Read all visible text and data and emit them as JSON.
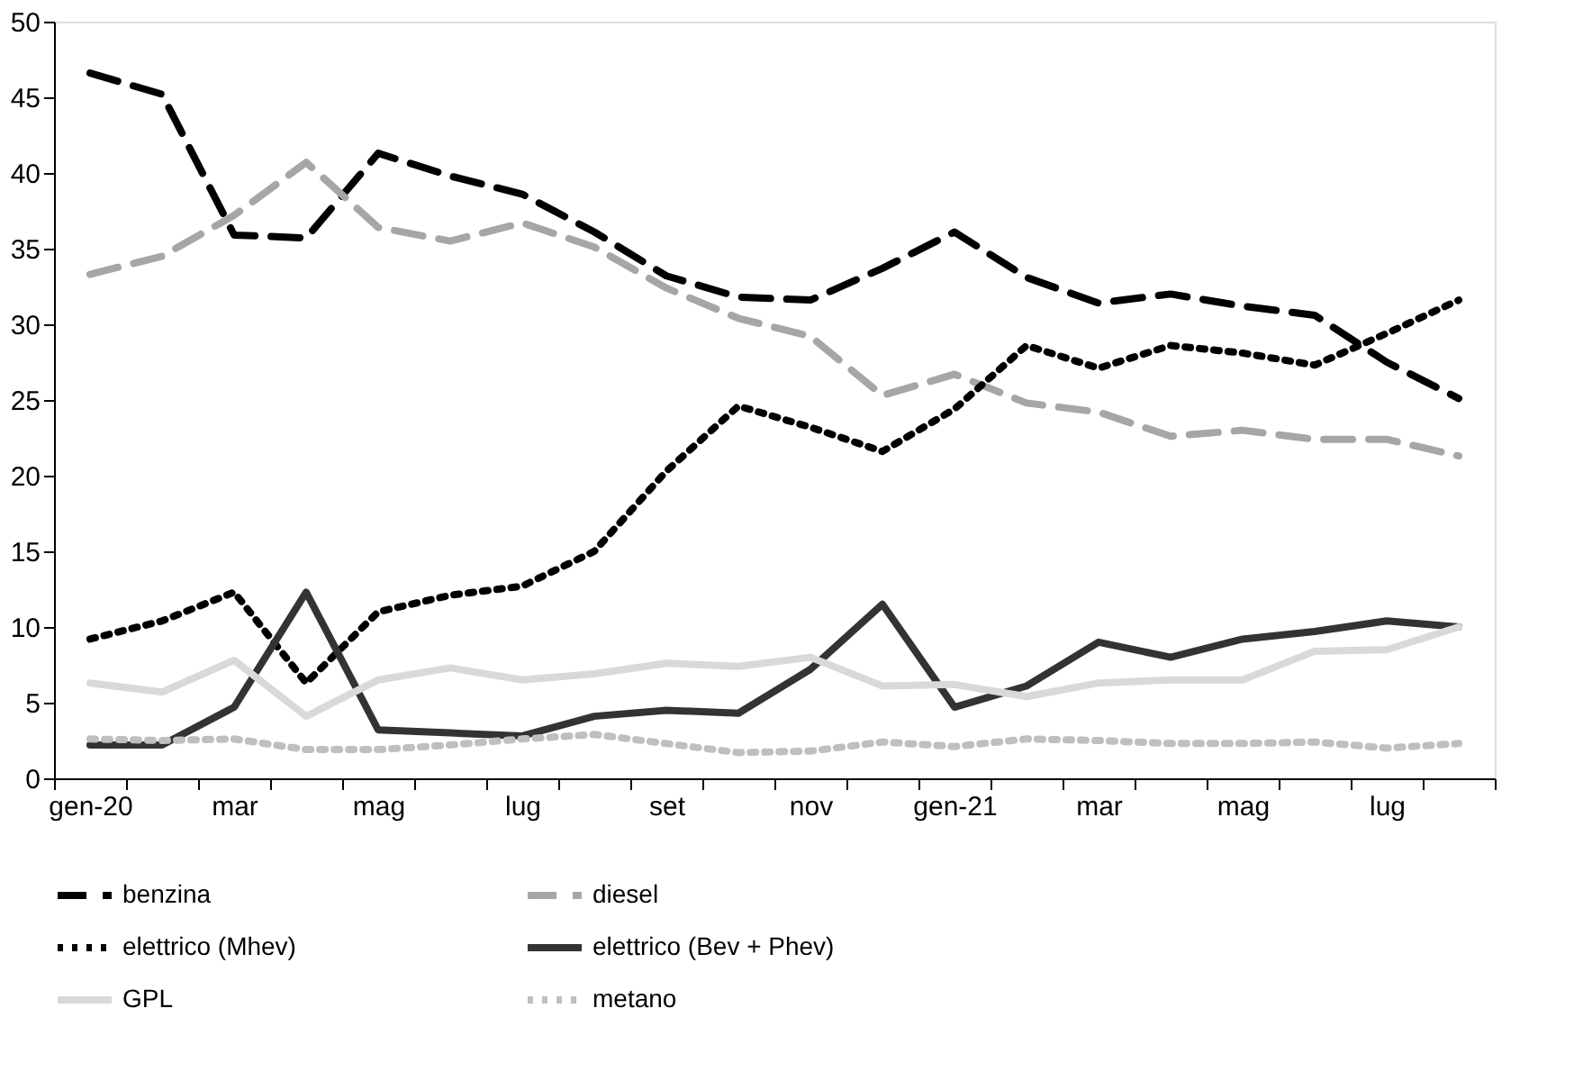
{
  "chart_data": {
    "type": "line",
    "categories": [
      "gen-20",
      null,
      "mar",
      null,
      "mag",
      null,
      "lug",
      null,
      "set",
      null,
      "nov",
      null,
      "gen-21",
      null,
      "mar",
      null,
      "mag",
      null,
      "lug",
      null
    ],
    "series": [
      {
        "name": "benzina",
        "color": "#000000",
        "line_style": "dashed",
        "values": [
          46.6,
          45.2,
          35.9,
          35.7,
          41.3,
          39.8,
          38.6,
          36.1,
          33.2,
          31.8,
          31.6,
          33.7,
          36.1,
          33.1,
          31.4,
          32.0,
          31.2,
          30.6,
          27.5,
          25.1
        ]
      },
      {
        "name": "diesel",
        "color": "#a6a6a6",
        "line_style": "dashed",
        "values": [
          33.3,
          34.5,
          37.2,
          40.7,
          36.4,
          35.5,
          36.7,
          35.1,
          32.4,
          30.4,
          29.2,
          25.3,
          26.7,
          24.8,
          24.2,
          22.6,
          23.0,
          22.4,
          22.4,
          21.3
        ]
      },
      {
        "name": "elettrico (Mhev)",
        "color": "#000000",
        "line_style": "dotted",
        "values": [
          9.2,
          10.4,
          12.3,
          6.3,
          11.0,
          12.1,
          12.7,
          15.0,
          20.3,
          24.6,
          23.2,
          21.6,
          24.4,
          28.6,
          27.1,
          28.6,
          28.1,
          27.3,
          29.4,
          31.6
        ]
      },
      {
        "name": "elettrico (Bev + Phev)",
        "color": "#333333",
        "line_style": "solid",
        "values": [
          2.2,
          2.2,
          4.7,
          12.3,
          3.2,
          3.0,
          2.8,
          4.1,
          4.5,
          4.3,
          7.2,
          11.5,
          4.7,
          6.1,
          9.0,
          8.0,
          9.2,
          9.7,
          10.4,
          10.0
        ]
      },
      {
        "name": "GPL",
        "color": "#d9d9d9",
        "line_style": "solid",
        "values": [
          6.3,
          5.7,
          7.8,
          4.1,
          6.5,
          7.3,
          6.5,
          6.9,
          7.6,
          7.4,
          8.0,
          6.1,
          6.2,
          5.4,
          6.3,
          6.5,
          6.5,
          8.4,
          8.5,
          10.0
        ]
      },
      {
        "name": "metano",
        "color": "#bfbfbf",
        "line_style": "dotted",
        "values": [
          2.6,
          2.5,
          2.6,
          1.9,
          1.9,
          2.2,
          2.6,
          2.9,
          2.3,
          1.7,
          1.8,
          2.4,
          2.1,
          2.6,
          2.5,
          2.3,
          2.3,
          2.4,
          2.0,
          2.3
        ]
      }
    ],
    "ylim": [
      0,
      50
    ],
    "yticks": [
      0,
      5,
      10,
      15,
      20,
      25,
      30,
      35,
      40,
      45,
      50
    ],
    "grid": false,
    "legend": "bottom"
  }
}
